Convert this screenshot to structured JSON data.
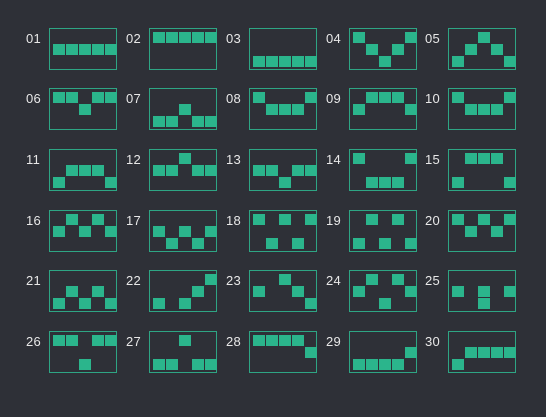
{
  "colors": {
    "background": "#2e3037",
    "frame": "#2ea584",
    "block": "#2bb58c",
    "label": "#e8e8e8"
  },
  "patterns": [
    {
      "label": "01",
      "grid": [
        "00000",
        "11111",
        "00000"
      ]
    },
    {
      "label": "02",
      "grid": [
        "11111",
        "00000",
        "00000"
      ]
    },
    {
      "label": "03",
      "grid": [
        "00000",
        "00000",
        "11111"
      ]
    },
    {
      "label": "04",
      "grid": [
        "10001",
        "01010",
        "00100"
      ]
    },
    {
      "label": "05",
      "grid": [
        "00100",
        "01010",
        "10001"
      ]
    },
    {
      "label": "06",
      "grid": [
        "11011",
        "00100",
        "00000"
      ]
    },
    {
      "label": "07",
      "grid": [
        "00000",
        "00100",
        "11011"
      ]
    },
    {
      "label": "08",
      "grid": [
        "10001",
        "01110",
        "00000"
      ]
    },
    {
      "label": "09",
      "grid": [
        "01110",
        "10001",
        "00000"
      ]
    },
    {
      "label": "10",
      "grid": [
        "10001",
        "01110",
        "00000"
      ]
    },
    {
      "label": "11",
      "grid": [
        "00000",
        "01110",
        "10001"
      ]
    },
    {
      "label": "12",
      "grid": [
        "00100",
        "11011",
        "00000"
      ]
    },
    {
      "label": "13",
      "grid": [
        "00000",
        "11011",
        "00100"
      ]
    },
    {
      "label": "14",
      "grid": [
        "10001",
        "00000",
        "01110"
      ]
    },
    {
      "label": "15",
      "grid": [
        "01110",
        "00000",
        "10001"
      ]
    },
    {
      "label": "16",
      "grid": [
        "01010",
        "10101",
        "00000"
      ]
    },
    {
      "label": "17",
      "grid": [
        "00000",
        "10101",
        "01010"
      ]
    },
    {
      "label": "18",
      "grid": [
        "10101",
        "00000",
        "01010"
      ]
    },
    {
      "label": "19",
      "grid": [
        "01010",
        "00000",
        "10101"
      ]
    },
    {
      "label": "20",
      "grid": [
        "10101",
        "01010",
        "00000"
      ]
    },
    {
      "label": "21",
      "grid": [
        "00000",
        "01010",
        "10101"
      ]
    },
    {
      "label": "22",
      "grid": [
        "00001",
        "00010",
        "10100"
      ]
    },
    {
      "label": "23",
      "grid": [
        "00100",
        "10010",
        "00001"
      ]
    },
    {
      "label": "24",
      "grid": [
        "01010",
        "10001",
        "00100"
      ]
    },
    {
      "label": "25",
      "grid": [
        "00000",
        "10101",
        "00100"
      ]
    },
    {
      "label": "26",
      "grid": [
        "11011",
        "00000",
        "00100"
      ]
    },
    {
      "label": "27",
      "grid": [
        "00100",
        "00000",
        "11011"
      ]
    },
    {
      "label": "28",
      "grid": [
        "11110",
        "00001",
        "00000"
      ]
    },
    {
      "label": "29",
      "grid": [
        "00000",
        "00001",
        "11110"
      ]
    },
    {
      "label": "30",
      "grid": [
        "00000",
        "01111",
        "10000"
      ]
    }
  ]
}
